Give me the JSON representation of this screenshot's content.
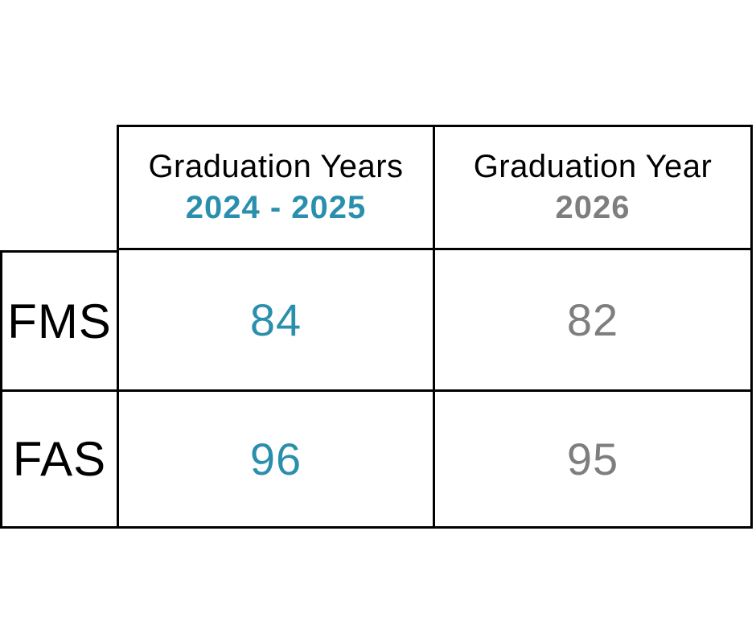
{
  "colors": {
    "accent_teal": "#2a8fad",
    "muted_gray": "#7e7e7e",
    "text_black": "#000000",
    "border_black": "#000000",
    "background": "#ffffff"
  },
  "table": {
    "columns": [
      {
        "title": "Graduation Years",
        "subtitle": "2024 - 2025",
        "subtitle_color": "#2a8fad"
      },
      {
        "title": "Graduation Year",
        "subtitle": "2026",
        "subtitle_color": "#7e7e7e"
      }
    ],
    "rows": [
      {
        "label": "FMS",
        "values": [
          "84",
          "82"
        ]
      },
      {
        "label": "FAS",
        "values": [
          "96",
          "95"
        ]
      }
    ]
  },
  "chart_data": {
    "type": "table",
    "columns": [
      "",
      "Graduation Years 2024 - 2025",
      "Graduation Year 2026"
    ],
    "rows": [
      [
        "FMS",
        84,
        82
      ],
      [
        "FAS",
        96,
        95
      ]
    ],
    "title": "",
    "notes": "Left data column rendered in teal (#2a8fad), right data column in gray (#7e7e7e); top-left corner cell is empty with no borders"
  }
}
